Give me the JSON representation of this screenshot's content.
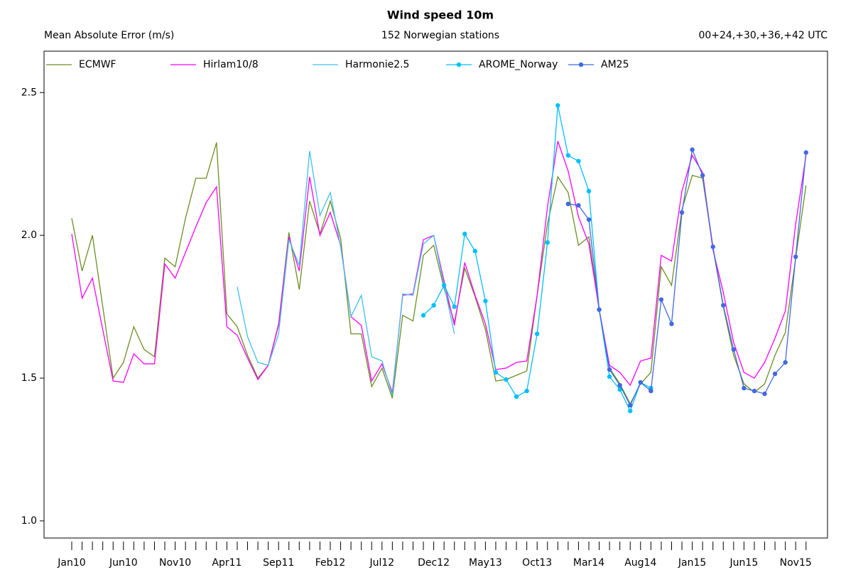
{
  "chart_data": {
    "type": "line",
    "title": "Wind speed 10m",
    "y_label": "Mean Absolute Error (m/s)",
    "subtitle": "152 Norwegian stations",
    "annotation": "00+24,+30,+36,+42 UTC",
    "categories": [
      "Jan10",
      null,
      null,
      null,
      null,
      "Jun10",
      null,
      null,
      null,
      null,
      "Nov10",
      null,
      null,
      null,
      null,
      "Apr11",
      null,
      null,
      null,
      null,
      "Sep11",
      null,
      null,
      null,
      null,
      "Feb12",
      null,
      null,
      null,
      null,
      "Jul12",
      null,
      null,
      null,
      null,
      "Dec12",
      null,
      null,
      null,
      null,
      "May13",
      null,
      null,
      null,
      null,
      "Oct13",
      null,
      null,
      null,
      null,
      "Mar14",
      null,
      null,
      null,
      null,
      "Aug14",
      null,
      null,
      null,
      null,
      "Jan15",
      null,
      null,
      null,
      null,
      "Jun15",
      null,
      null,
      null,
      null,
      "Nov15",
      null
    ],
    "ylim": [
      0.94,
      2.645
    ],
    "yticks": [
      {
        "value": 1.0,
        "label": "1.0"
      },
      1.5,
      {
        "value": 2.0,
        "label": "2.0"
      },
      2.5
    ],
    "legend": "top",
    "series": [
      {
        "name": "ECMWF",
        "color": "#6b8e23",
        "marker": false,
        "values": [
          2.06,
          1.875,
          2.0,
          1.75,
          1.5,
          1.555,
          1.68,
          1.6,
          1.575,
          1.92,
          1.89,
          2.06,
          2.2,
          2.2,
          2.325,
          1.725,
          1.68,
          1.58,
          1.5,
          1.545,
          1.69,
          2.01,
          1.81,
          2.12,
          2.005,
          2.12,
          1.99,
          1.655,
          1.655,
          1.47,
          1.535,
          1.43,
          1.72,
          1.7,
          1.93,
          1.965,
          1.815,
          1.695,
          1.885,
          1.785,
          1.67,
          1.49,
          1.495,
          1.51,
          1.525,
          1.79,
          2.04,
          2.205,
          2.15,
          1.965,
          1.995,
          1.74,
          1.535,
          1.48,
          1.41,
          1.48,
          1.52,
          1.89,
          1.825,
          2.09,
          2.21,
          2.2,
          1.955,
          1.75,
          1.58,
          1.48,
          1.45,
          1.48,
          1.58,
          1.66,
          1.92,
          2.175
        ]
      },
      {
        "name": "Hirlam10/8",
        "color": "#ff00ff",
        "marker": false,
        "values": [
          2.005,
          1.78,
          1.85,
          1.67,
          1.49,
          1.485,
          1.585,
          1.55,
          1.55,
          1.9,
          1.85,
          1.94,
          2.03,
          2.115,
          2.17,
          1.68,
          1.65,
          1.57,
          1.495,
          1.545,
          1.685,
          1.995,
          1.875,
          2.205,
          2.0,
          2.08,
          1.965,
          1.715,
          1.685,
          1.49,
          1.55,
          1.45,
          1.79,
          1.795,
          1.985,
          2.0,
          1.84,
          1.685,
          1.905,
          1.79,
          1.69,
          1.53,
          1.535,
          1.555,
          1.56,
          1.79,
          2.1,
          2.33,
          2.225,
          2.065,
          1.97,
          1.74,
          1.545,
          1.52,
          1.475,
          1.56,
          1.57,
          1.93,
          1.91,
          2.155,
          2.28,
          2.22,
          1.95,
          1.8,
          1.625,
          1.52,
          1.5,
          1.555,
          1.64,
          1.735,
          2.04,
          2.28
        ]
      },
      {
        "name": "Harmonie2.5",
        "color": "#40c0e8",
        "marker": false,
        "values": [
          null,
          null,
          null,
          null,
          null,
          null,
          null,
          null,
          null,
          null,
          null,
          null,
          null,
          null,
          null,
          null,
          1.82,
          1.645,
          1.555,
          1.545,
          1.655,
          1.985,
          1.895,
          2.295,
          2.07,
          2.15,
          1.96,
          1.715,
          1.79,
          1.575,
          1.56,
          1.44,
          1.795,
          1.79,
          1.97,
          2.0,
          1.825,
          1.655,
          null,
          null,
          null,
          null,
          null,
          null,
          null,
          null,
          null,
          null,
          null,
          null,
          null,
          null,
          null,
          null,
          null,
          null,
          null,
          null,
          null,
          null,
          null,
          null,
          null,
          null,
          null,
          null,
          null,
          null,
          null,
          null,
          null,
          null
        ]
      },
      {
        "name": "AROME_Norway",
        "color": "#00bfff",
        "marker": true,
        "values": [
          null,
          null,
          null,
          null,
          null,
          null,
          null,
          null,
          null,
          null,
          null,
          null,
          null,
          null,
          null,
          null,
          null,
          null,
          null,
          null,
          null,
          null,
          null,
          null,
          null,
          null,
          null,
          null,
          null,
          null,
          null,
          null,
          null,
          null,
          1.72,
          1.755,
          1.825,
          1.75,
          2.005,
          1.945,
          1.77,
          1.52,
          1.495,
          1.435,
          1.455,
          1.655,
          1.975,
          2.455,
          2.28,
          2.26,
          2.155,
          1.74,
          1.505,
          1.46,
          1.385,
          1.485,
          1.465,
          null,
          null,
          null,
          null,
          null,
          null,
          null,
          null,
          null,
          null,
          null,
          null,
          null,
          null,
          null
        ]
      },
      {
        "name": "AM25",
        "color": "#4169e1",
        "marker": true,
        "values": [
          null,
          null,
          null,
          null,
          null,
          null,
          null,
          null,
          null,
          null,
          null,
          null,
          null,
          null,
          null,
          null,
          null,
          null,
          null,
          null,
          null,
          null,
          null,
          null,
          null,
          null,
          null,
          null,
          null,
          null,
          null,
          null,
          null,
          null,
          null,
          null,
          null,
          null,
          null,
          null,
          null,
          null,
          null,
          null,
          null,
          null,
          null,
          null,
          2.11,
          2.105,
          2.055,
          1.74,
          1.53,
          1.475,
          1.405,
          1.485,
          1.455,
          1.775,
          1.69,
          2.08,
          2.3,
          2.21,
          1.96,
          1.755,
          1.6,
          1.465,
          1.455,
          1.445,
          1.515,
          1.555,
          1.925,
          2.29
        ]
      }
    ]
  }
}
